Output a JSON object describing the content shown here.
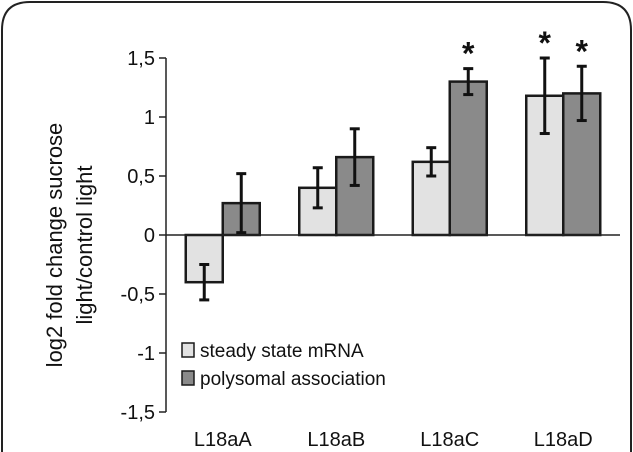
{
  "chart_data": {
    "type": "bar",
    "title": "",
    "xlabel": "",
    "ylabel_lines": [
      "log2 fold change sucrose",
      "light/control light"
    ],
    "categories": [
      "L18aA",
      "L18aB",
      "L18aC",
      "L18aD"
    ],
    "ylim": [
      -1.5,
      1.5
    ],
    "yticks": [
      1.5,
      1,
      0.5,
      0,
      -0.5,
      -1,
      -1.5
    ],
    "ytick_labels": [
      "1,5",
      "1",
      "0,5",
      "0",
      "-0,5",
      "-1",
      "-1,5"
    ],
    "grid": false,
    "legend_position": "bottom-left",
    "series": [
      {
        "name": "steady state mRNA",
        "color": "#e2e2e2",
        "values": [
          -0.4,
          0.4,
          0.62,
          1.18
        ],
        "errors": [
          0.15,
          0.17,
          0.12,
          0.32
        ],
        "significant": [
          false,
          false,
          false,
          true
        ]
      },
      {
        "name": "polysomal association",
        "color": "#8a8a8a",
        "values": [
          0.27,
          0.66,
          1.3,
          1.2
        ],
        "errors": [
          0.25,
          0.24,
          0.11,
          0.23
        ],
        "significant": [
          false,
          false,
          true,
          true
        ]
      }
    ],
    "significance_marker": "*"
  }
}
